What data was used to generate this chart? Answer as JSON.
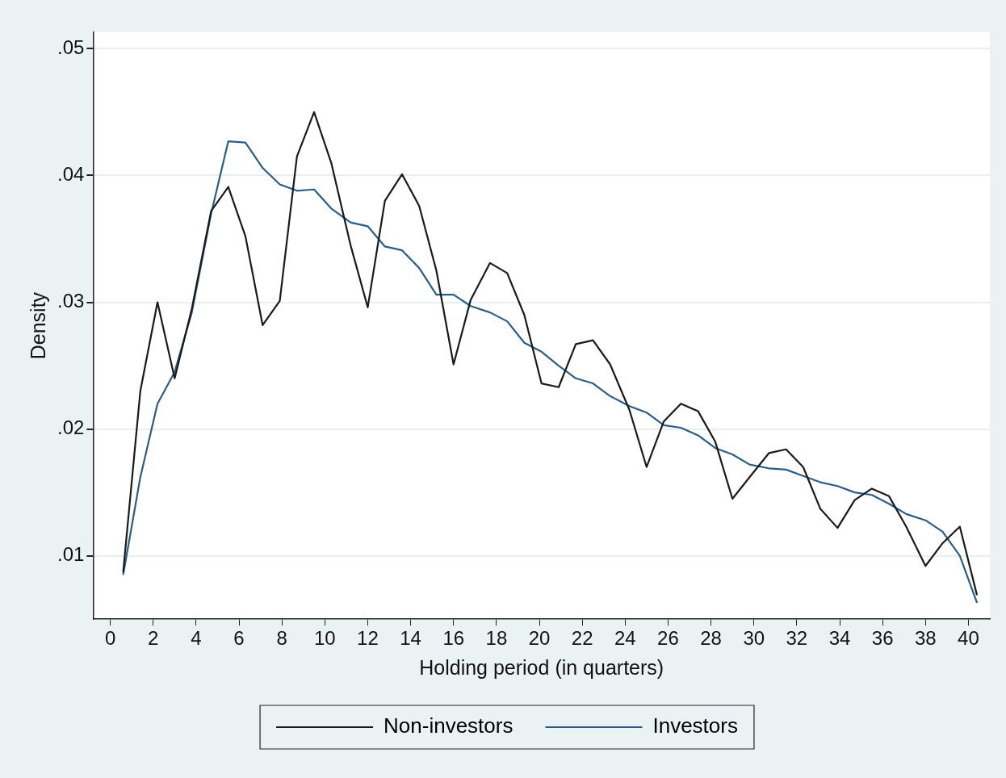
{
  "chart_data": {
    "type": "line",
    "xlabel": "Holding period (in quarters)",
    "ylabel": "Density",
    "x": [
      0.6,
      1.4,
      2.2,
      3.0,
      3.8,
      4.7,
      5.5,
      6.3,
      7.1,
      7.9,
      8.7,
      9.5,
      10.3,
      11.2,
      12.0,
      12.8,
      13.6,
      14.4,
      15.2,
      16.0,
      16.8,
      17.7,
      18.5,
      19.3,
      20.1,
      20.9,
      21.7,
      22.5,
      23.3,
      24.2,
      25.0,
      25.8,
      26.6,
      27.4,
      28.2,
      29.0,
      29.8,
      30.7,
      31.5,
      32.3,
      33.1,
      33.9,
      34.7,
      35.5,
      36.3,
      37.1,
      38.0,
      38.8,
      39.6,
      40.4
    ],
    "series": [
      {
        "name": "Non-investors",
        "color": "#1a1a1a",
        "values": [
          0.0087,
          0.023,
          0.03,
          0.024,
          0.0295,
          0.0372,
          0.0391,
          0.0352,
          0.0282,
          0.0301,
          0.0415,
          0.045,
          0.041,
          0.0345,
          0.0296,
          0.038,
          0.0401,
          0.0376,
          0.0325,
          0.0251,
          0.0302,
          0.0331,
          0.0323,
          0.029,
          0.0236,
          0.0233,
          0.0267,
          0.027,
          0.0251,
          0.0215,
          0.017,
          0.0206,
          0.022,
          0.0214,
          0.019,
          0.0145,
          0.0162,
          0.0181,
          0.0184,
          0.017,
          0.0137,
          0.0122,
          0.0144,
          0.0153,
          0.0147,
          0.0123,
          0.0092,
          0.011,
          0.0123,
          0.0069
        ]
      },
      {
        "name": "Investors",
        "color": "#2b5d86",
        "values": [
          0.0085,
          0.0162,
          0.022,
          0.0245,
          0.0292,
          0.037,
          0.0427,
          0.0426,
          0.0406,
          0.0393,
          0.0388,
          0.0389,
          0.0374,
          0.0363,
          0.036,
          0.0344,
          0.0341,
          0.0327,
          0.0306,
          0.0306,
          0.0297,
          0.0292,
          0.0285,
          0.0268,
          0.0261,
          0.025,
          0.024,
          0.0236,
          0.0226,
          0.0218,
          0.0213,
          0.0203,
          0.0201,
          0.0195,
          0.0185,
          0.018,
          0.0172,
          0.0169,
          0.0168,
          0.0163,
          0.0158,
          0.0155,
          0.015,
          0.0148,
          0.0141,
          0.0133,
          0.0128,
          0.0119,
          0.01,
          0.0063
        ]
      }
    ],
    "xlim": [
      -0.8,
      41
    ],
    "xticks": [
      0,
      2,
      4,
      6,
      8,
      10,
      12,
      14,
      16,
      18,
      20,
      22,
      24,
      26,
      28,
      30,
      32,
      34,
      36,
      38,
      40
    ],
    "ylim": [
      0.005,
      0.0513
    ],
    "yticks": [
      {
        "value": 0.01,
        "label": ".01"
      },
      {
        "value": 0.02,
        "label": ".02"
      },
      {
        "value": 0.03,
        "label": ".03"
      },
      {
        "value": 0.04,
        "label": ".04"
      },
      {
        "value": 0.05,
        "label": ".05"
      }
    ],
    "grid": "y",
    "legend": "bottom",
    "marker": "none",
    "line_style": "solid"
  }
}
